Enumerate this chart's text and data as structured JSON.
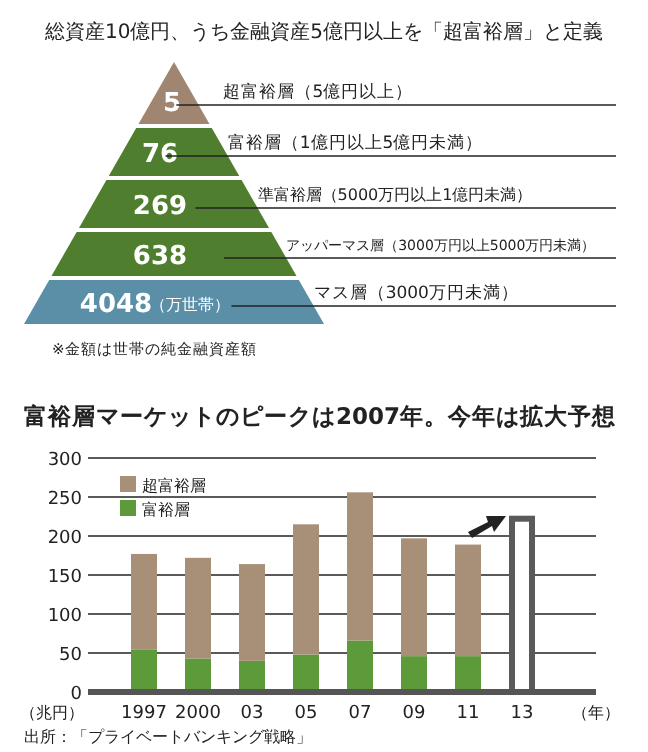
{
  "chart_data": [
    {
      "type": "other",
      "title": "総資産10億円、うち金融資産5億円以上を「超富裕層」と定義",
      "categories": [
        "超富裕層（5億円以上）",
        "富裕層（1億円以上5億円未満）",
        "準富裕層（5000万円以上1億円未満）",
        "アッパーマス層（3000万円以上5000万円未満）",
        "マス層（3000万円未満）"
      ],
      "values": [
        5,
        76,
        269,
        638,
        4048
      ],
      "colors": [
        "#a08670",
        "#4f7f2e",
        "#4f7f2e",
        "#4f7f2e",
        "#5b8fa8"
      ],
      "data_labels": true,
      "annotations": [
        "（万世帯）",
        "※金額は世帯の純金融資産額"
      ]
    },
    {
      "type": "bar",
      "title": "富裕層マーケットのピークは2007年。今年は拡大予想",
      "stacked": true,
      "categories": [
        "1997",
        "2000",
        "03",
        "05",
        "07",
        "09",
        "11",
        "13"
      ],
      "ylabel": "（兆円）",
      "xlabel": "（年）",
      "series": [
        {
          "name": "富裕層",
          "color": "#5c9a3a",
          "values": [
            54,
            43,
            40,
            48,
            66,
            46,
            46,
            null
          ]
        },
        {
          "name": "超富裕層",
          "color": "#a89078",
          "values": [
            123,
            129,
            124,
            167,
            190,
            151,
            143,
            null
          ]
        },
        {
          "color": "#5a5a5a",
          "values": [
            null,
            null,
            null,
            null,
            null,
            null,
            null,
            226
          ]
        }
      ],
      "ylim": [
        0,
        300
      ],
      "yticks": [
        0,
        50,
        100,
        150,
        200,
        250,
        300
      ],
      "grid": "y",
      "legend": "top left",
      "annotations": [
        "出所：「プライベートバンキング戦略」"
      ]
    }
  ]
}
